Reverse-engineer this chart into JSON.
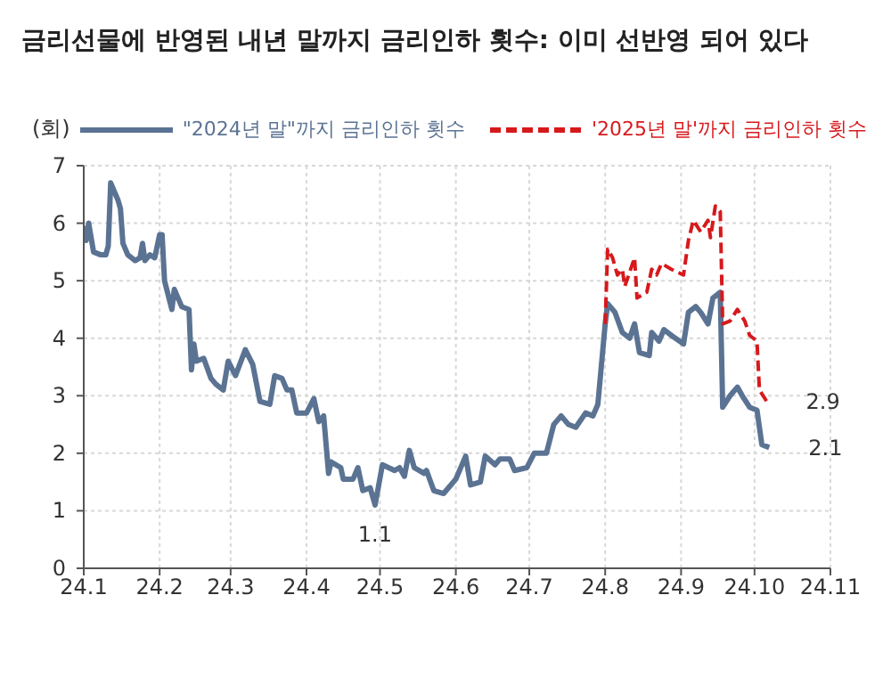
{
  "chart_data": {
    "type": "line",
    "title": "금리선물에 반영된 내년 말까지 금리인하 횟수: 이미 선반영 되어 있다",
    "ylabel": "(회)",
    "xlim": [
      "2024-01",
      "2024-11"
    ],
    "xticks": [
      {
        "value": "2024-01",
        "label": "24.1"
      },
      {
        "value": "2024-02",
        "label": "24.2"
      },
      {
        "value": "2024-03",
        "label": "24.3"
      },
      {
        "value": "2024-04",
        "label": "24.4"
      },
      {
        "value": "2024-05",
        "label": "24.5"
      },
      {
        "value": "2024-06",
        "label": "24.6"
      },
      {
        "value": "2024-07",
        "label": "24.7"
      },
      {
        "value": "2024-08",
        "label": "24.8"
      },
      {
        "value": "2024-09",
        "label": "24.9"
      },
      {
        "value": "2024-10",
        "label": "24.10"
      },
      {
        "value": "2024-11",
        "label": "24.11"
      }
    ],
    "ylim": [
      0,
      7
    ],
    "yticks": [
      0,
      1,
      2,
      3,
      4,
      5,
      6,
      7
    ],
    "grid": true,
    "legend": "top",
    "series": [
      {
        "name": "\"2024년 말\"까지 금리인하 횟수",
        "color": "#5b7393",
        "line_style": "solid",
        "x": [
          "2024-01-01",
          "2024-01-02",
          "2024-01-03",
          "2024-01-05",
          "2024-01-08",
          "2024-01-10",
          "2024-01-11",
          "2024-01-12",
          "2024-01-15",
          "2024-01-16",
          "2024-01-17",
          "2024-01-19",
          "2024-01-22",
          "2024-01-24",
          "2024-01-25",
          "2024-01-26",
          "2024-01-28",
          "2024-01-30",
          "2024-02-01",
          "2024-02-02",
          "2024-02-03",
          "2024-02-06",
          "2024-02-07",
          "2024-02-10",
          "2024-02-13",
          "2024-02-14",
          "2024-02-15",
          "2024-02-16",
          "2024-02-19",
          "2024-02-22",
          "2024-02-24",
          "2024-02-27",
          "2024-02-29",
          "2024-03-03",
          "2024-03-07",
          "2024-03-10",
          "2024-03-13",
          "2024-03-17",
          "2024-03-19",
          "2024-03-22",
          "2024-03-24",
          "2024-03-26",
          "2024-03-28",
          "2024-04-01",
          "2024-04-04",
          "2024-04-06",
          "2024-04-08",
          "2024-04-10",
          "2024-04-11",
          "2024-04-15",
          "2024-04-16",
          "2024-04-20",
          "2024-04-22",
          "2024-04-24",
          "2024-04-27",
          "2024-04-29",
          "2024-05-02",
          "2024-05-07",
          "2024-05-09",
          "2024-05-11",
          "2024-05-13",
          "2024-05-15",
          "2024-05-19",
          "2024-05-20",
          "2024-05-23",
          "2024-05-27",
          "2024-06-01",
          "2024-06-05",
          "2024-06-07",
          "2024-06-11",
          "2024-06-13",
          "2024-06-17",
          "2024-06-19",
          "2024-06-23",
          "2024-06-25",
          "2024-06-30",
          "2024-07-03",
          "2024-07-08",
          "2024-07-11",
          "2024-07-14",
          "2024-07-17",
          "2024-07-20",
          "2024-07-24",
          "2024-07-27",
          "2024-07-29",
          "2024-08-01",
          "2024-08-02",
          "2024-08-05",
          "2024-08-08",
          "2024-08-11",
          "2024-08-13",
          "2024-08-15",
          "2024-08-19",
          "2024-08-20",
          "2024-08-23",
          "2024-08-25",
          "2024-08-28",
          "2024-09-02",
          "2024-09-04",
          "2024-09-07",
          "2024-09-09",
          "2024-09-12",
          "2024-09-14",
          "2024-09-17",
          "2024-09-18",
          "2024-09-21",
          "2024-09-24",
          "2024-09-26",
          "2024-09-29",
          "2024-10-02",
          "2024-10-04",
          "2024-10-07"
        ],
        "values": [
          5.95,
          5.7,
          6.0,
          5.5,
          5.45,
          5.45,
          5.6,
          6.7,
          6.4,
          6.25,
          5.65,
          5.45,
          5.35,
          5.4,
          5.65,
          5.35,
          5.45,
          5.4,
          5.8,
          5.8,
          5.0,
          4.5,
          4.85,
          4.55,
          4.5,
          3.45,
          3.9,
          3.6,
          3.65,
          3.3,
          3.2,
          3.1,
          3.6,
          3.35,
          3.8,
          3.55,
          2.9,
          2.85,
          3.35,
          3.3,
          3.1,
          3.1,
          2.7,
          2.7,
          2.95,
          2.55,
          2.65,
          1.65,
          1.85,
          1.75,
          1.55,
          1.55,
          1.75,
          1.35,
          1.4,
          1.1,
          1.8,
          1.7,
          1.75,
          1.6,
          2.05,
          1.75,
          1.65,
          1.7,
          1.35,
          1.3,
          1.55,
          1.95,
          1.45,
          1.5,
          1.95,
          1.8,
          1.9,
          1.9,
          1.7,
          1.75,
          2.0,
          2.0,
          2.5,
          2.65,
          2.5,
          2.45,
          2.7,
          2.65,
          2.85,
          4.25,
          4.6,
          4.45,
          4.1,
          4.0,
          4.25,
          3.75,
          3.7,
          4.1,
          3.95,
          4.15,
          4.05,
          3.9,
          4.45,
          4.55,
          4.45,
          4.25,
          4.7,
          4.8,
          2.8,
          3.0,
          3.15,
          3.0,
          2.8,
          2.75,
          2.15,
          2.1
        ]
      },
      {
        "name": "'2025년 말'까지 금리인하 횟수",
        "color": "#d7191c",
        "line_style": "dashed",
        "x": [
          "2024-08-01",
          "2024-08-02",
          "2024-08-04",
          "2024-08-06",
          "2024-08-08",
          "2024-08-09",
          "2024-08-13",
          "2024-08-14",
          "2024-08-18",
          "2024-08-20",
          "2024-08-22",
          "2024-08-24",
          "2024-08-28",
          "2024-09-02",
          "2024-09-04",
          "2024-09-06",
          "2024-09-09",
          "2024-09-12",
          "2024-09-13",
          "2024-09-15",
          "2024-09-17",
          "2024-09-18",
          "2024-09-21",
          "2024-09-24",
          "2024-09-27",
          "2024-09-29",
          "2024-10-02",
          "2024-10-03",
          "2024-10-06"
        ],
        "values": [
          4.25,
          5.55,
          5.4,
          5.1,
          5.2,
          4.9,
          5.4,
          4.7,
          4.8,
          5.2,
          5.1,
          5.3,
          5.2,
          5.1,
          5.7,
          6.05,
          5.85,
          6.05,
          5.75,
          6.3,
          6.2,
          4.25,
          4.3,
          4.5,
          4.3,
          4.05,
          3.95,
          3.1,
          2.9
        ]
      }
    ],
    "annotations": [
      {
        "text": "1.1",
        "x": "2024-04-29",
        "y": 1.1
      },
      {
        "text": "2.9",
        "x": "2024-10-06",
        "y": 2.9
      },
      {
        "text": "2.1",
        "x": "2024-10-07",
        "y": 2.1
      }
    ]
  }
}
